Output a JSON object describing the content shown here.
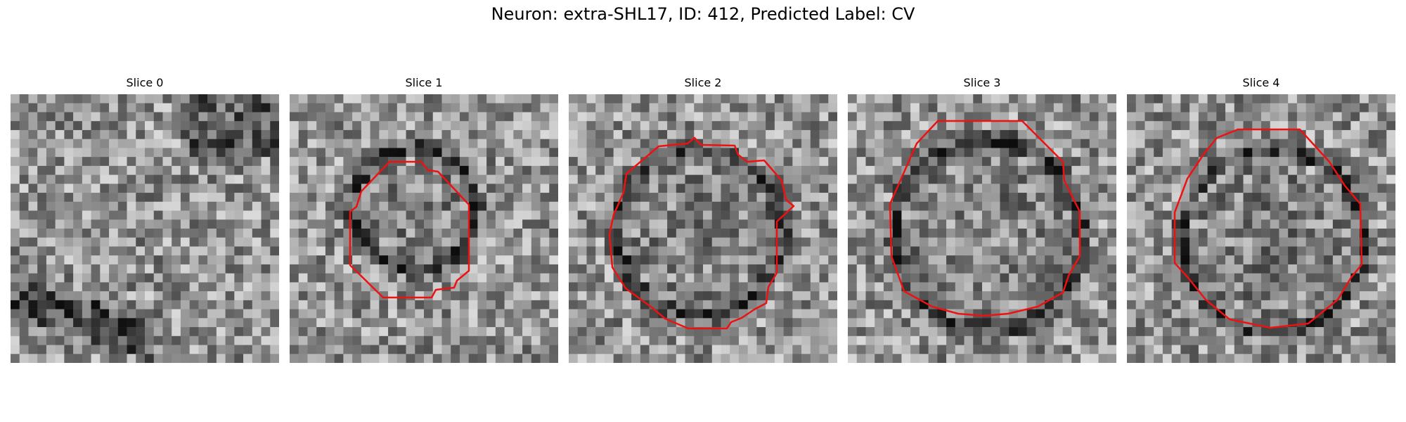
{
  "figure": {
    "title": "Neuron: extra-SHL17, ID: 412, Predicted Label: CV"
  },
  "panels": [
    {
      "title": "Slice 0",
      "has_contour": false
    },
    {
      "title": "Slice 1",
      "has_contour": true
    },
    {
      "title": "Slice 2",
      "has_contour": true
    },
    {
      "title": "Slice 3",
      "has_contour": true
    },
    {
      "title": "Slice 4",
      "has_contour": true
    }
  ],
  "colors": {
    "contour": "#ee1111",
    "background": "#ffffff"
  },
  "image": {
    "colormap": "grayscale",
    "grid_cells": 30
  }
}
